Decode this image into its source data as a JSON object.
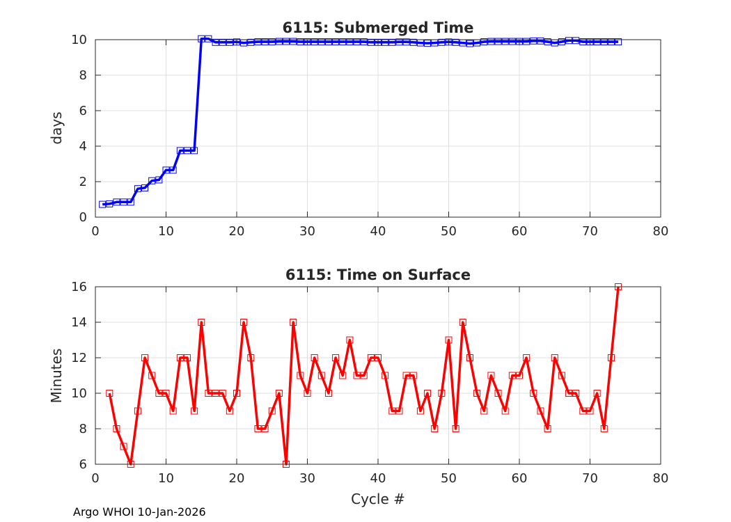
{
  "footer": "Argo WHOI 10-Jan-2026",
  "chart_data": [
    {
      "type": "line",
      "title": "6115: Submerged Time",
      "xlabel": "",
      "ylabel": "days",
      "xlim": [
        0,
        80
      ],
      "ylim": [
        0,
        10
      ],
      "xticks": [
        0,
        10,
        20,
        30,
        40,
        50,
        60,
        70,
        80
      ],
      "yticks": [
        0,
        2,
        4,
        6,
        8,
        10
      ],
      "grid": true,
      "color": "#0000ff",
      "marker": "square",
      "x": [
        1,
        2,
        3,
        4,
        5,
        6,
        7,
        8,
        9,
        10,
        11,
        12,
        13,
        14,
        15,
        16,
        17,
        18,
        19,
        20,
        21,
        22,
        23,
        24,
        25,
        26,
        27,
        28,
        29,
        30,
        31,
        32,
        33,
        34,
        35,
        36,
        37,
        38,
        39,
        40,
        41,
        42,
        43,
        44,
        45,
        46,
        47,
        48,
        49,
        50,
        51,
        52,
        53,
        54,
        55,
        56,
        57,
        58,
        59,
        60,
        61,
        62,
        63,
        64,
        65,
        66,
        67,
        68,
        69,
        70,
        71,
        72,
        73,
        74
      ],
      "y": [
        0.72,
        0.75,
        0.85,
        0.85,
        0.85,
        1.6,
        1.65,
        2.05,
        2.1,
        2.65,
        2.65,
        3.75,
        3.75,
        3.75,
        10.05,
        10.05,
        9.85,
        9.85,
        9.85,
        9.87,
        9.82,
        9.85,
        9.88,
        9.88,
        9.88,
        9.9,
        9.9,
        9.9,
        9.88,
        9.88,
        9.88,
        9.88,
        9.88,
        9.88,
        9.88,
        9.88,
        9.88,
        9.88,
        9.85,
        9.85,
        9.85,
        9.85,
        9.87,
        9.87,
        9.85,
        9.82,
        9.8,
        9.82,
        9.85,
        9.87,
        9.85,
        9.82,
        9.78,
        9.82,
        9.88,
        9.9,
        9.9,
        9.9,
        9.9,
        9.9,
        9.9,
        9.93,
        9.93,
        9.88,
        9.82,
        9.88,
        9.95,
        9.95,
        9.88,
        9.88,
        9.88,
        9.88,
        9.88,
        9.88
      ]
    },
    {
      "type": "line",
      "title": "6115: Time on Surface",
      "xlabel": "Cycle #",
      "ylabel": "Minutes",
      "xlim": [
        0,
        80
      ],
      "ylim": [
        6,
        16
      ],
      "xticks": [
        0,
        10,
        20,
        30,
        40,
        50,
        60,
        70,
        80
      ],
      "yticks": [
        6,
        8,
        10,
        12,
        14,
        16
      ],
      "grid": true,
      "color": "#ff0000",
      "marker": "square",
      "x": [
        2,
        3,
        4,
        5,
        6,
        7,
        8,
        9,
        10,
        11,
        12,
        13,
        14,
        15,
        16,
        17,
        18,
        19,
        20,
        21,
        22,
        23,
        24,
        25,
        26,
        27,
        28,
        29,
        30,
        31,
        32,
        33,
        34,
        35,
        36,
        37,
        38,
        39,
        40,
        41,
        42,
        43,
        44,
        45,
        46,
        47,
        48,
        49,
        50,
        51,
        52,
        53,
        54,
        55,
        56,
        57,
        58,
        59,
        60,
        61,
        62,
        63,
        64,
        65,
        66,
        67,
        68,
        69,
        70,
        71,
        72,
        73,
        74
      ],
      "y": [
        10,
        8,
        7,
        6,
        9,
        12,
        11,
        10,
        10,
        9,
        12,
        12,
        9,
        14,
        10,
        10,
        10,
        9,
        10,
        14,
        12,
        8,
        8,
        9,
        10,
        6,
        14,
        11,
        10,
        12,
        11,
        10,
        12,
        11,
        13,
        11,
        11,
        12,
        12,
        11,
        9,
        9,
        11,
        11,
        9,
        10,
        8,
        10,
        13,
        8,
        14,
        12,
        10,
        9,
        11,
        10,
        9,
        11,
        11,
        12,
        10,
        9,
        8,
        12,
        11,
        10,
        10,
        9,
        9,
        10,
        8,
        12,
        16
      ]
    }
  ]
}
